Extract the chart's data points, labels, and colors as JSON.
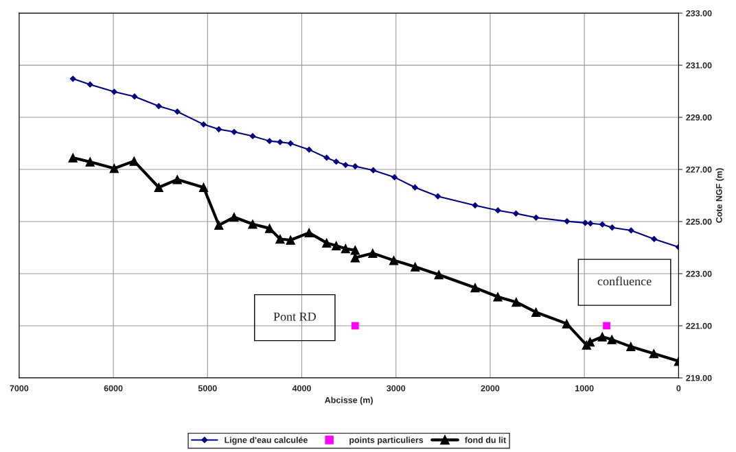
{
  "chart_data": {
    "type": "line",
    "xlabel": "Abcisse (m)",
    "ylabel": "Cote NGF (m)",
    "xlim": [
      7000,
      0
    ],
    "xticks": [
      7000,
      6000,
      5000,
      4000,
      3000,
      2000,
      1000,
      0
    ],
    "ylim": [
      219,
      233
    ],
    "yticks": [
      {
        "value": 219,
        "label": "219.00"
      },
      {
        "value": 221,
        "label": "221.00"
      },
      {
        "value": 223,
        "label": "223.00"
      },
      {
        "value": 225,
        "label": "225.00"
      },
      {
        "value": 227,
        "label": "227.00"
      },
      {
        "value": 229,
        "label": "229.00"
      },
      {
        "value": 231,
        "label": "231.00"
      },
      {
        "value": 233,
        "label": "233.00"
      }
    ],
    "grid": true,
    "legend": "bottom",
    "series": [
      {
        "name": "Ligne d'eau calculée",
        "color": "#000080",
        "marker": "diamond",
        "x": [
          6429,
          6247,
          5991,
          5775,
          5518,
          5321,
          5042,
          4880,
          4718,
          4521,
          4342,
          4230,
          4119,
          3922,
          3736,
          3634,
          3535,
          3433,
          3241,
          3016,
          2798,
          2555,
          2160,
          1918,
          1726,
          1513,
          1185,
          991,
          936,
          809,
          705,
          504,
          260,
          0
        ],
        "values": [
          230.48,
          230.26,
          229.98,
          229.8,
          229.43,
          229.22,
          228.73,
          228.54,
          228.44,
          228.28,
          228.09,
          228.05,
          228.0,
          227.76,
          227.45,
          227.3,
          227.17,
          227.12,
          226.97,
          226.7,
          226.31,
          225.97,
          225.62,
          225.43,
          225.31,
          225.15,
          225.01,
          224.95,
          224.93,
          224.89,
          224.77,
          224.66,
          224.33,
          224.02
        ]
      },
      {
        "name": "points particuliers",
        "type": "scatter",
        "color": "#ff00ff",
        "marker": "square",
        "x": [
          3433,
          764
        ],
        "values": [
          221.0,
          221.0
        ]
      },
      {
        "name": "fond du lit",
        "color": "#000000",
        "marker": "triangle",
        "x": [
          6429,
          6247,
          5991,
          5780,
          5518,
          5321,
          5042,
          4880,
          4718,
          4521,
          4342,
          4230,
          4119,
          3922,
          3736,
          3634,
          3535,
          3433,
          3433,
          3247,
          3023,
          2796,
          2545,
          2160,
          1919,
          1724,
          1514,
          1188,
          977,
          940,
          810,
          708,
          507,
          263,
          0
        ],
        "values": [
          227.45,
          227.29,
          227.04,
          227.32,
          226.31,
          226.61,
          226.31,
          224.86,
          225.17,
          224.9,
          224.74,
          224.33,
          224.29,
          224.57,
          224.18,
          224.07,
          223.96,
          223.9,
          223.61,
          223.78,
          223.51,
          223.26,
          222.96,
          222.46,
          222.11,
          221.91,
          221.52,
          221.08,
          220.26,
          220.38,
          220.58,
          220.47,
          220.2,
          219.93,
          219.64
        ]
      }
    ],
    "annotations": [
      "Pont RD",
      "confluence"
    ]
  }
}
